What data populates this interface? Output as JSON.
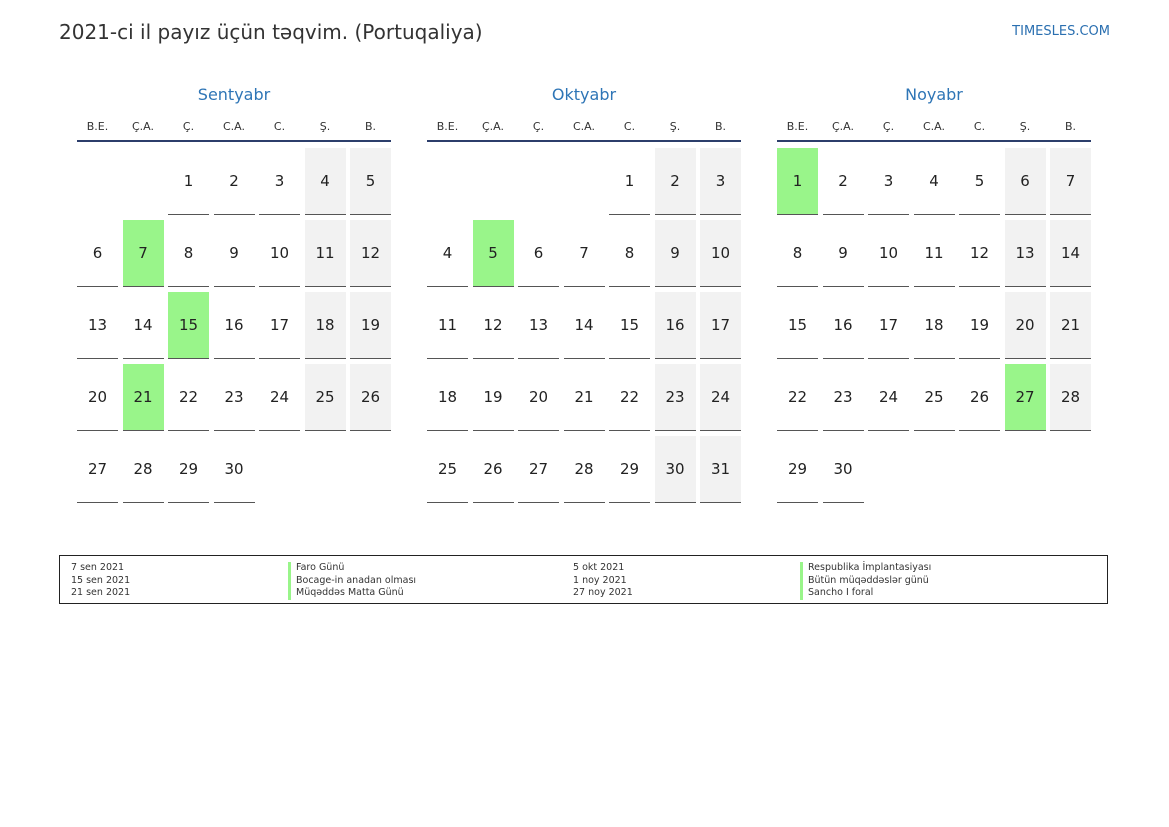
{
  "header": {
    "title": "2021-ci il payız üçün təqvim. (Portuqaliya)",
    "site": "TIMESLES.COM"
  },
  "colors": {
    "accent": "#2e75b6",
    "holiday": "#99f58a",
    "weekend": "#f2f2f2"
  },
  "weekdays": [
    "B.E.",
    "Ç.A.",
    "Ç.",
    "C.A.",
    "C.",
    "Ş.",
    "B."
  ],
  "months": [
    {
      "name": "Sentyabr",
      "offset": 2,
      "days": [
        "1",
        "2",
        "3",
        "4",
        "5",
        "6",
        "7",
        "8",
        "9",
        "10",
        "11",
        "12",
        "13",
        "14",
        "15",
        "16",
        "17",
        "18",
        "19",
        "20",
        "21",
        "22",
        "23",
        "24",
        "25",
        "26",
        "27",
        "28",
        "29",
        "30"
      ],
      "holidays": [
        7,
        15,
        21
      ]
    },
    {
      "name": "Oktyabr",
      "offset": 4,
      "days": [
        "1",
        "2",
        "3",
        "4",
        "5",
        "6",
        "7",
        "8",
        "9",
        "10",
        "11",
        "12",
        "13",
        "14",
        "15",
        "16",
        "17",
        "18",
        "19",
        "20",
        "21",
        "22",
        "23",
        "24",
        "25",
        "26",
        "27",
        "28",
        "29",
        "30",
        "31"
      ],
      "holidays": [
        5
      ]
    },
    {
      "name": "Noyabr",
      "offset": 0,
      "days": [
        "1",
        "2",
        "3",
        "4",
        "5",
        "6",
        "7",
        "8",
        "9",
        "10",
        "11",
        "12",
        "13",
        "14",
        "15",
        "16",
        "17",
        "18",
        "19",
        "20",
        "21",
        "22",
        "23",
        "24",
        "25",
        "26",
        "27",
        "28",
        "29",
        "30"
      ],
      "holidays": [
        1,
        27
      ]
    }
  ],
  "legend": {
    "col1_dates": [
      "7 sen 2021",
      "15 sen 2021",
      "21 sen 2021"
    ],
    "col1_names": [
      "Faro Günü",
      "Bocage-in anadan olması",
      "Müqəddəs Matta Günü"
    ],
    "col2_dates": [
      "5 okt 2021",
      "1 noy 2021",
      "27 noy 2021"
    ],
    "col2_names": [
      "Respublika İmplantasiyası",
      "Bütün müqəddəslər günü",
      "Sancho I foral"
    ]
  }
}
